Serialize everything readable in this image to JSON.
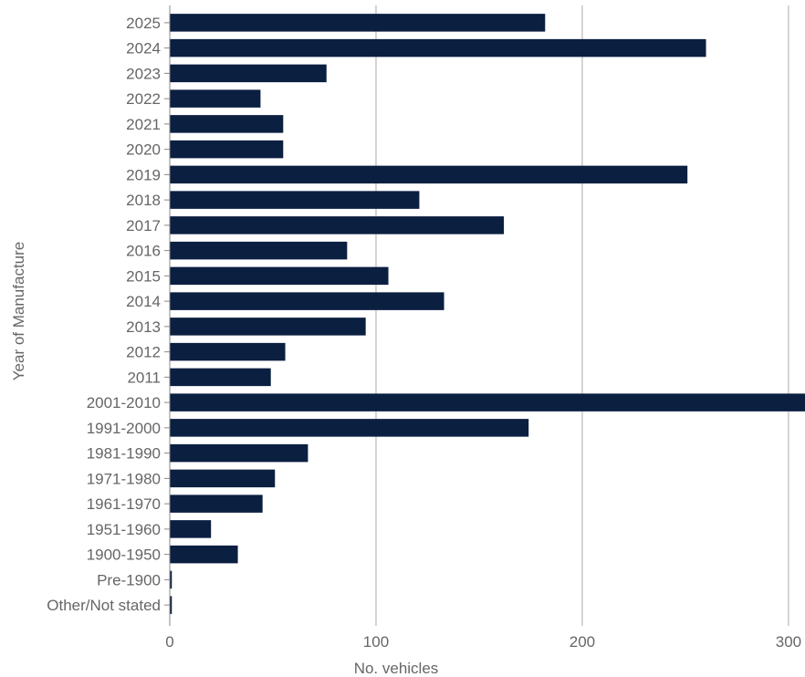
{
  "chart_data": {
    "type": "bar",
    "orientation": "horizontal",
    "title": "",
    "xlabel": "No. vehicles",
    "ylabel": "Year of Manufacture",
    "categories": [
      "2025",
      "2024",
      "2023",
      "2022",
      "2021",
      "2020",
      "2019",
      "2018",
      "2017",
      "2016",
      "2015",
      "2014",
      "2013",
      "2012",
      "2011",
      "2001-2010",
      "1991-2000",
      "1981-1990",
      "1971-1980",
      "1961-1970",
      "1951-1960",
      "1900-1950",
      "Pre-1900",
      "Other/Not stated"
    ],
    "values": [
      182,
      260,
      76,
      44,
      55,
      55,
      251,
      121,
      162,
      86,
      106,
      133,
      95,
      56,
      49,
      308,
      174,
      67,
      51,
      45,
      20,
      33,
      1,
      1
    ],
    "xlim": [
      0,
      308
    ],
    "xticks": [
      0,
      100,
      200,
      300
    ],
    "grid": "vertical",
    "legend": "none",
    "colors": {
      "bar": "#0b1f40",
      "grid": "#aaaaaa",
      "axis": "#888888",
      "text": "#666666"
    }
  }
}
